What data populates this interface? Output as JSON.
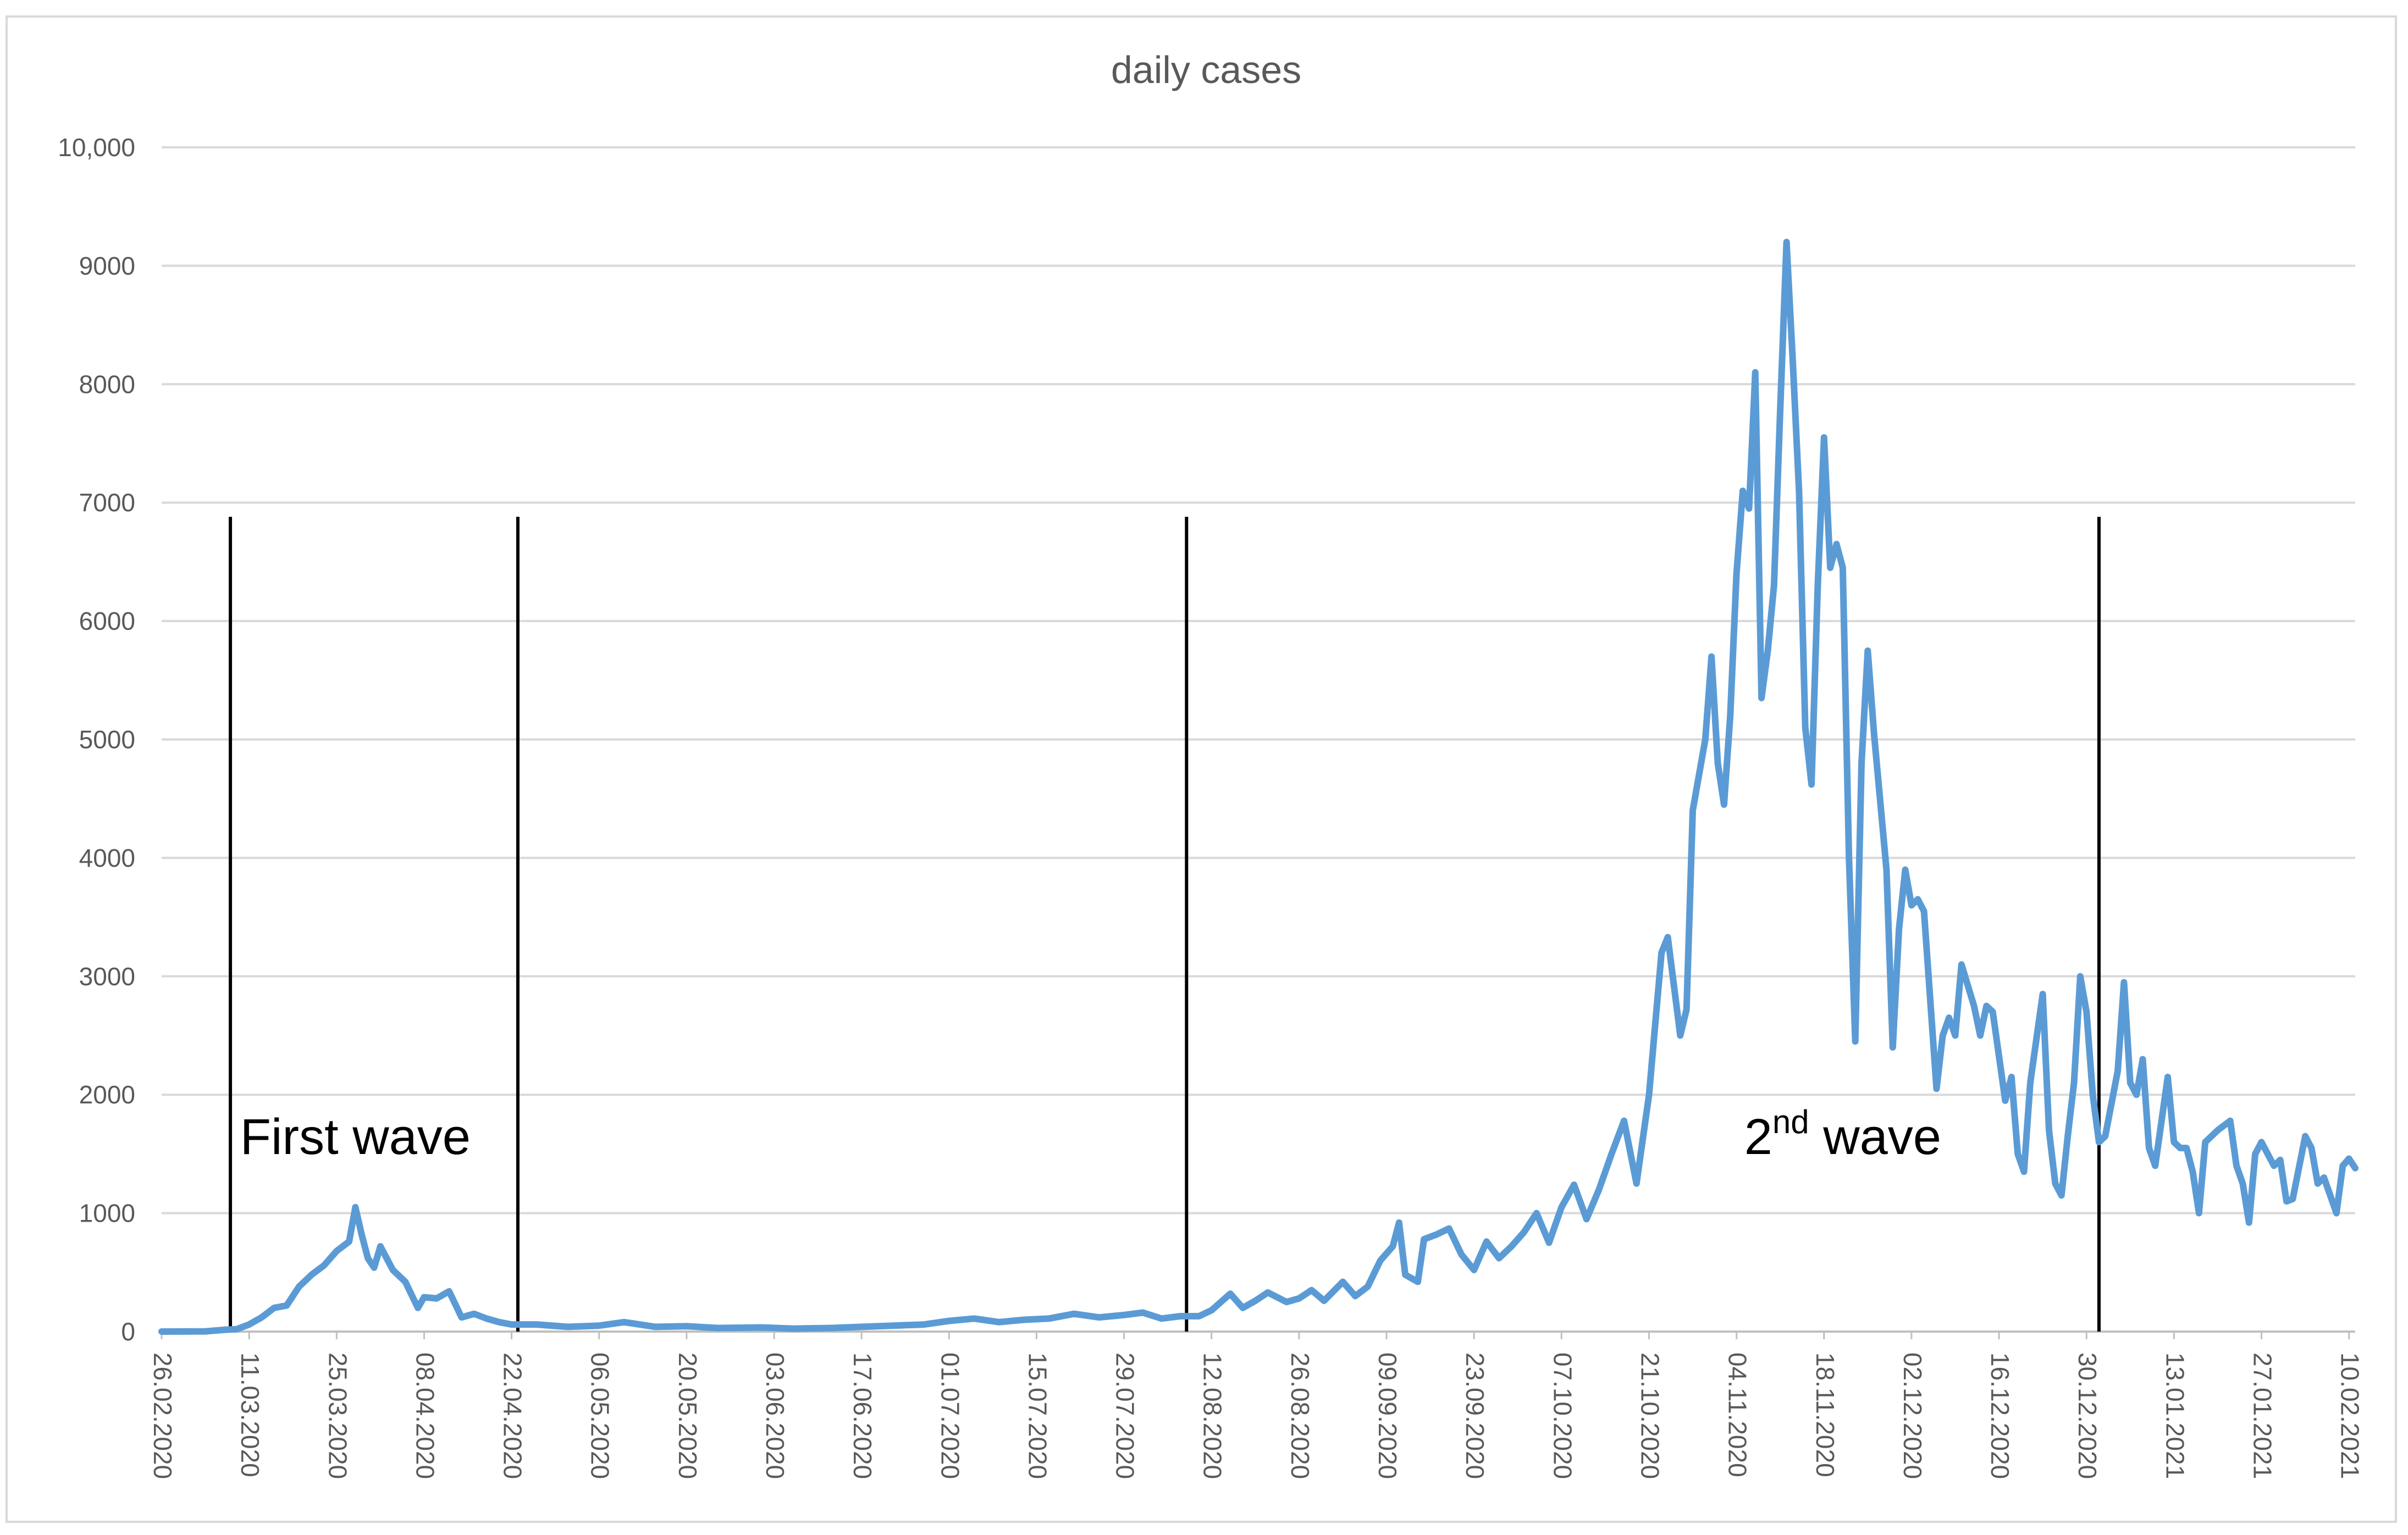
{
  "chart_data": {
    "type": "line",
    "title": "daily cases",
    "xlabel": "",
    "ylabel": "",
    "x_start": "26.02.2020",
    "x_end": "11.02.2021",
    "ylim": [
      0,
      10000
    ],
    "yticks": [
      0,
      1000,
      2000,
      3000,
      4000,
      5000,
      6000,
      7000,
      8000,
      9000,
      10000
    ],
    "ytick_labels": [
      "0",
      "1000",
      "2000",
      "3000",
      "4000",
      "5000",
      "6000",
      "7000",
      "8000",
      "9000",
      "10,000"
    ],
    "xtick_labels": [
      "26.02.2020",
      "11.03.2020",
      "25.03.2020",
      "08.04.2020",
      "22.04.2020",
      "06.05.2020",
      "20.05.2020",
      "03.06.2020",
      "17.06.2020",
      "01.07.2020",
      "15.07.2020",
      "29.07.2020",
      "12.08.2020",
      "26.08.2020",
      "09.09.2020",
      "23.09.2020",
      "07.10.2020",
      "21.10.2020",
      "04.11.2020",
      "18.11.2020",
      "02.12.2020",
      "16.12.2020",
      "30.12.2020",
      "13.01.2021",
      "27.01.2021",
      "10.02.2021"
    ],
    "grid": true,
    "line_color": "#5b9bd5",
    "series": [
      {
        "name": "",
        "keypoints": [
          [
            "26.02.2020",
            0
          ],
          [
            "04.03.2020",
            2
          ],
          [
            "07.03.2020",
            15
          ],
          [
            "09.03.2020",
            20
          ],
          [
            "11.03.2020",
            60
          ],
          [
            "13.03.2020",
            120
          ],
          [
            "15.03.2020",
            200
          ],
          [
            "17.03.2020",
            220
          ],
          [
            "19.03.2020",
            380
          ],
          [
            "21.03.2020",
            480
          ],
          [
            "23.03.2020",
            560
          ],
          [
            "25.03.2020",
            680
          ],
          [
            "27.03.2020",
            760
          ],
          [
            "28.03.2020",
            1050
          ],
          [
            "29.03.2020",
            820
          ],
          [
            "30.03.2020",
            620
          ],
          [
            "31.03.2020",
            540
          ],
          [
            "01.04.2020",
            720
          ],
          [
            "03.04.2020",
            520
          ],
          [
            "05.04.2020",
            420
          ],
          [
            "07.04.2020",
            200
          ],
          [
            "08.04.2020",
            290
          ],
          [
            "10.04.2020",
            280
          ],
          [
            "12.04.2020",
            340
          ],
          [
            "14.04.2020",
            120
          ],
          [
            "16.04.2020",
            150
          ],
          [
            "18.04.2020",
            110
          ],
          [
            "20.04.2020",
            80
          ],
          [
            "22.04.2020",
            60
          ],
          [
            "26.04.2020",
            60
          ],
          [
            "01.05.2020",
            40
          ],
          [
            "06.05.2020",
            50
          ],
          [
            "10.05.2020",
            80
          ],
          [
            "15.05.2020",
            40
          ],
          [
            "20.05.2020",
            45
          ],
          [
            "25.05.2020",
            30
          ],
          [
            "01.06.2020",
            35
          ],
          [
            "06.06.2020",
            25
          ],
          [
            "12.06.2020",
            30
          ],
          [
            "17.06.2020",
            40
          ],
          [
            "22.06.2020",
            50
          ],
          [
            "27.06.2020",
            60
          ],
          [
            "01.07.2020",
            90
          ],
          [
            "05.07.2020",
            110
          ],
          [
            "09.07.2020",
            80
          ],
          [
            "13.07.2020",
            100
          ],
          [
            "17.07.2020",
            110
          ],
          [
            "21.07.2020",
            150
          ],
          [
            "25.07.2020",
            120
          ],
          [
            "29.07.2020",
            140
          ],
          [
            "01.08.2020",
            160
          ],
          [
            "04.08.2020",
            110
          ],
          [
            "07.08.2020",
            130
          ],
          [
            "10.08.2020",
            130
          ],
          [
            "12.08.2020",
            180
          ],
          [
            "15.08.2020",
            320
          ],
          [
            "17.08.2020",
            200
          ],
          [
            "19.08.2020",
            260
          ],
          [
            "21.08.2020",
            330
          ],
          [
            "24.08.2020",
            250
          ],
          [
            "26.08.2020",
            280
          ],
          [
            "28.08.2020",
            350
          ],
          [
            "30.08.2020",
            260
          ],
          [
            "02.09.2020",
            420
          ],
          [
            "04.09.2020",
            300
          ],
          [
            "06.09.2020",
            380
          ],
          [
            "08.09.2020",
            600
          ],
          [
            "10.09.2020",
            720
          ],
          [
            "11.09.2020",
            920
          ],
          [
            "12.09.2020",
            480
          ],
          [
            "14.09.2020",
            420
          ],
          [
            "15.09.2020",
            780
          ],
          [
            "17.09.2020",
            820
          ],
          [
            "19.09.2020",
            870
          ],
          [
            "21.09.2020",
            650
          ],
          [
            "23.09.2020",
            520
          ],
          [
            "25.09.2020",
            760
          ],
          [
            "27.09.2020",
            620
          ],
          [
            "29.09.2020",
            720
          ],
          [
            "01.10.2020",
            840
          ],
          [
            "03.10.2020",
            1000
          ],
          [
            "05.10.2020",
            750
          ],
          [
            "07.10.2020",
            1050
          ],
          [
            "09.10.2020",
            1240
          ],
          [
            "11.10.2020",
            950
          ],
          [
            "13.10.2020",
            1200
          ],
          [
            "15.10.2020",
            1500
          ],
          [
            "17.10.2020",
            1780
          ],
          [
            "19.10.2020",
            1250
          ],
          [
            "21.10.2020",
            2000
          ],
          [
            "23.10.2020",
            3200
          ],
          [
            "24.10.2020",
            3330
          ],
          [
            "26.10.2020",
            2500
          ],
          [
            "27.10.2020",
            2720
          ],
          [
            "28.10.2020",
            4400
          ],
          [
            "30.10.2020",
            5000
          ],
          [
            "31.10.2020",
            5700
          ],
          [
            "01.11.2020",
            4800
          ],
          [
            "02.11.2020",
            4450
          ],
          [
            "03.11.2020",
            5200
          ],
          [
            "04.11.2020",
            6400
          ],
          [
            "05.11.2020",
            7100
          ],
          [
            "06.11.2020",
            6950
          ],
          [
            "07.11.2020",
            8100
          ],
          [
            "08.11.2020",
            5350
          ],
          [
            "09.11.2020",
            5750
          ],
          [
            "10.11.2020",
            6300
          ],
          [
            "11.11.2020",
            7800
          ],
          [
            "12.11.2020",
            9200
          ],
          [
            "13.11.2020",
            8200
          ],
          [
            "14.11.2020",
            7100
          ],
          [
            "15.11.2020",
            5100
          ],
          [
            "16.11.2020",
            4620
          ],
          [
            "17.11.2020",
            6300
          ],
          [
            "18.11.2020",
            7550
          ],
          [
            "19.11.2020",
            6450
          ],
          [
            "20.11.2020",
            6650
          ],
          [
            "21.11.2020",
            6450
          ],
          [
            "22.11.2020",
            4000
          ],
          [
            "23.11.2020",
            2450
          ],
          [
            "24.11.2020",
            4800
          ],
          [
            "25.11.2020",
            5750
          ],
          [
            "26.11.2020",
            5050
          ],
          [
            "28.11.2020",
            3900
          ],
          [
            "29.11.2020",
            2400
          ],
          [
            "30.11.2020",
            3400
          ],
          [
            "01.12.2020",
            3900
          ],
          [
            "02.12.2020",
            3600
          ],
          [
            "03.12.2020",
            3650
          ],
          [
            "04.12.2020",
            3550
          ],
          [
            "06.12.2020",
            2050
          ],
          [
            "07.12.2020",
            2500
          ],
          [
            "08.12.2020",
            2650
          ],
          [
            "09.12.2020",
            2500
          ],
          [
            "10.12.2020",
            3100
          ],
          [
            "12.12.2020",
            2750
          ],
          [
            "13.12.2020",
            2500
          ],
          [
            "14.12.2020",
            2750
          ],
          [
            "15.12.2020",
            2700
          ],
          [
            "17.12.2020",
            1950
          ],
          [
            "18.12.2020",
            2150
          ],
          [
            "19.12.2020",
            1500
          ],
          [
            "20.12.2020",
            1350
          ],
          [
            "21.12.2020",
            2100
          ],
          [
            "23.12.2020",
            2850
          ],
          [
            "24.12.2020",
            1700
          ],
          [
            "25.12.2020",
            1250
          ],
          [
            "26.12.2020",
            1150
          ],
          [
            "27.12.2020",
            1650
          ],
          [
            "28.12.2020",
            2100
          ],
          [
            "29.12.2020",
            3000
          ],
          [
            "30.12.2020",
            2700
          ],
          [
            "31.12.2020",
            2000
          ],
          [
            "01.01.2021",
            1600
          ],
          [
            "02.01.2021",
            1650
          ],
          [
            "04.01.2021",
            2200
          ],
          [
            "05.01.2021",
            2950
          ],
          [
            "06.01.2021",
            2100
          ],
          [
            "07.01.2021",
            2000
          ],
          [
            "08.01.2021",
            2300
          ],
          [
            "09.01.2021",
            1550
          ],
          [
            "10.01.2021",
            1400
          ],
          [
            "12.01.2021",
            2150
          ],
          [
            "13.01.2021",
            1600
          ],
          [
            "14.01.2021",
            1550
          ],
          [
            "15.01.2021",
            1550
          ],
          [
            "16.01.2021",
            1350
          ],
          [
            "17.01.2021",
            1000
          ],
          [
            "18.01.2021",
            1600
          ],
          [
            "20.01.2021",
            1700
          ],
          [
            "22.01.2021",
            1780
          ],
          [
            "23.01.2021",
            1400
          ],
          [
            "24.01.2021",
            1250
          ],
          [
            "25.01.2021",
            920
          ],
          [
            "26.01.2021",
            1500
          ],
          [
            "27.01.2021",
            1600
          ],
          [
            "29.01.2021",
            1400
          ],
          [
            "30.01.2021",
            1450
          ],
          [
            "31.01.2021",
            1100
          ],
          [
            "01.02.2021",
            1120
          ],
          [
            "03.02.2021",
            1650
          ],
          [
            "04.02.2021",
            1550
          ],
          [
            "05.02.2021",
            1250
          ],
          [
            "06.02.2021",
            1300
          ],
          [
            "08.02.2021",
            1000
          ],
          [
            "09.02.2021",
            1400
          ],
          [
            "10.02.2021",
            1460
          ],
          [
            "11.02.2021",
            1380
          ]
        ]
      }
    ],
    "vertical_markers": [
      "08.03.2020",
      "23.04.2020",
      "08.08.2020",
      "01.01.2021"
    ],
    "annotations": [
      {
        "text": "First wave",
        "date": "28.03.2020",
        "y": 1500
      },
      {
        "text_base": "2",
        "text_sup": "nd",
        "text_rest": " wave",
        "date": "21.11.2020",
        "y": 1500
      }
    ]
  }
}
